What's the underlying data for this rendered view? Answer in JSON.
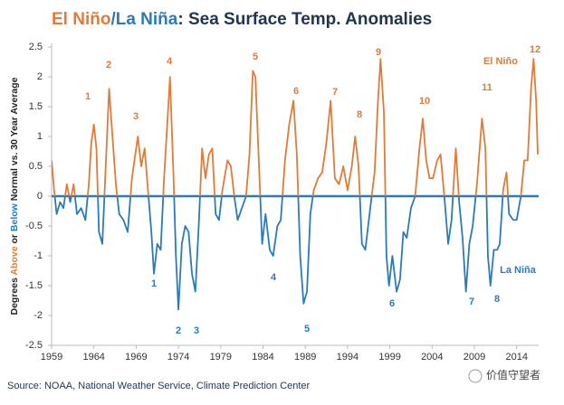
{
  "chart_data": {
    "type": "line",
    "title_parts": [
      "El Niño",
      "/",
      "La Niña",
      ": Sea Surface Temp. Anomalies"
    ],
    "y_label_parts": [
      "Degrees ",
      "Above",
      " or ",
      "Below",
      " Normal vs. 30 Year Average"
    ],
    "source": "Source: NOAA, National Weather Service, Climate Prediction Center",
    "watermark": "价值守望者",
    "series_labels": [
      "El Niño",
      "La Niña"
    ],
    "colors": {
      "positive": "#e07b39",
      "negative": "#2b7bb9"
    },
    "el_nino_annotations": [
      "1",
      "2",
      "3",
      "4",
      "5",
      "6",
      "7",
      "8",
      "9",
      "10",
      "11",
      "12"
    ],
    "la_nina_annotations": [
      "1",
      "2",
      "3",
      "4",
      "5",
      "6",
      "7",
      "8"
    ],
    "x": [
      1959.0,
      1959.3,
      1959.6,
      1960.0,
      1960.4,
      1960.8,
      1961.2,
      1961.6,
      1962.0,
      1962.5,
      1963.0,
      1963.4,
      1963.7,
      1964.0,
      1964.3,
      1964.6,
      1965.0,
      1965.4,
      1965.8,
      1966.2,
      1966.6,
      1967.0,
      1967.5,
      1968.0,
      1968.5,
      1968.8,
      1969.2,
      1969.6,
      1970.0,
      1970.4,
      1970.8,
      1971.1,
      1971.5,
      1971.9,
      1972.3,
      1972.8,
      1973.0,
      1973.4,
      1973.7,
      1974.0,
      1974.4,
      1974.8,
      1975.2,
      1975.6,
      1976.0,
      1976.4,
      1976.8,
      1977.2,
      1977.6,
      1978.0,
      1978.4,
      1978.8,
      1979.2,
      1979.8,
      1980.2,
      1980.6,
      1981.0,
      1981.5,
      1982.0,
      1982.4,
      1982.8,
      1983.1,
      1983.5,
      1983.9,
      1984.3,
      1984.8,
      1985.2,
      1985.7,
      1986.1,
      1986.6,
      1987.1,
      1987.6,
      1988.0,
      1988.4,
      1988.8,
      1989.2,
      1989.6,
      1990.0,
      1990.5,
      1991.0,
      1991.5,
      1992.0,
      1992.5,
      1993.0,
      1993.5,
      1994.0,
      1994.5,
      1994.9,
      1995.3,
      1995.7,
      1996.1,
      1996.6,
      1997.2,
      1997.6,
      1997.9,
      1998.3,
      1998.6,
      1998.9,
      1999.3,
      1999.8,
      2000.2,
      2000.6,
      2001.0,
      2001.5,
      2002.0,
      2002.5,
      2002.9,
      2003.3,
      2003.7,
      2004.1,
      2004.6,
      2005.0,
      2005.5,
      2005.9,
      2006.3,
      2006.8,
      2007.2,
      2007.6,
      2008.0,
      2008.4,
      2008.8,
      2009.3,
      2009.9,
      2010.3,
      2010.6,
      2010.9,
      2011.3,
      2011.7,
      2012.0,
      2012.4,
      2012.8,
      2013.1,
      2013.6,
      2014.0,
      2014.5,
      2014.9,
      2015.3,
      2015.7,
      2016.0,
      2016.3,
      2016.5
    ],
    "values": [
      0.6,
      0.1,
      -0.3,
      -0.1,
      -0.2,
      0.2,
      -0.1,
      0.2,
      -0.3,
      -0.2,
      -0.4,
      0.2,
      0.9,
      1.2,
      0.8,
      -0.6,
      -0.8,
      0.5,
      1.8,
      1.0,
      0.2,
      -0.3,
      -0.4,
      -0.6,
      0.3,
      0.6,
      1.0,
      0.5,
      0.8,
      0.1,
      -0.6,
      -1.3,
      -0.8,
      -0.9,
      0.3,
      1.5,
      2.0,
      0.4,
      -1.0,
      -1.9,
      -0.8,
      -0.5,
      -0.6,
      -1.3,
      -1.6,
      -0.5,
      0.8,
      0.3,
      0.7,
      0.8,
      -0.3,
      -0.4,
      0.1,
      0.6,
      0.5,
      0.0,
      -0.4,
      -0.2,
      0.0,
      0.7,
      2.1,
      2.0,
      0.6,
      -0.8,
      -0.3,
      -0.9,
      -1.0,
      -0.5,
      -0.4,
      0.6,
      1.2,
      1.6,
      0.7,
      -1.0,
      -1.8,
      -1.6,
      -0.3,
      0.1,
      0.3,
      0.4,
      0.9,
      1.6,
      0.3,
      0.2,
      0.5,
      0.1,
      0.5,
      1.0,
      0.5,
      -0.8,
      -0.9,
      -0.3,
      0.4,
      1.6,
      2.3,
      1.4,
      -1.0,
      -1.5,
      -1.0,
      -1.6,
      -1.4,
      -0.6,
      -0.7,
      -0.2,
      0.0,
      0.8,
      1.3,
      0.6,
      0.3,
      0.3,
      0.6,
      0.7,
      -0.1,
      -0.8,
      -0.4,
      0.8,
      -0.1,
      -0.7,
      -1.6,
      -0.8,
      -0.5,
      0.2,
      1.3,
      0.8,
      -1.0,
      -1.5,
      -0.9,
      -0.9,
      -0.8,
      0.1,
      0.4,
      -0.3,
      -0.4,
      -0.4,
      0.0,
      0.6,
      0.6,
      1.8,
      2.3,
      1.6,
      0.7
    ],
    "xlim": [
      1959,
      2016.6
    ],
    "ylim": [
      -2.5,
      2.5
    ],
    "xticks": [
      1959,
      1964,
      1969,
      1974,
      1979,
      1984,
      1989,
      1994,
      1999,
      2004,
      2009,
      2014
    ],
    "yticks": [
      2.5,
      2,
      1.5,
      1,
      0.5,
      0,
      -0.5,
      -1,
      -1.5,
      -2,
      -2.5
    ]
  }
}
